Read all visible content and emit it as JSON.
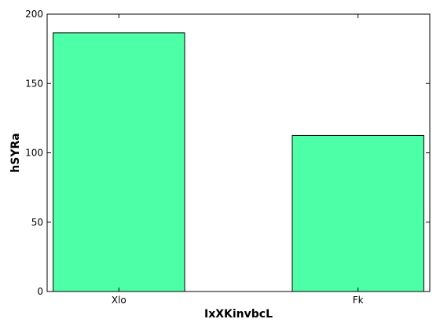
{
  "chart_data": {
    "type": "bar",
    "categories": [
      "Xlo",
      "Fk"
    ],
    "values": [
      186.5,
      112.5
    ],
    "title": "",
    "xlabel": "IxXKinvbcL",
    "ylabel": "hSYRa",
    "ylim": [
      0,
      200
    ],
    "yticks": [
      0,
      50,
      100,
      150,
      200
    ],
    "grid": false,
    "legend": "none",
    "bar_color": "#4dffa6",
    "bar_edge_color": "#000000"
  }
}
